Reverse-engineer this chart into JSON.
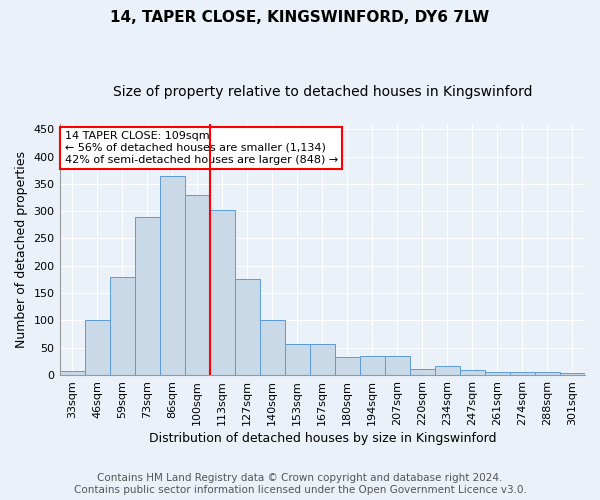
{
  "title": "14, TAPER CLOSE, KINGSWINFORD, DY6 7LW",
  "subtitle": "Size of property relative to detached houses in Kingswinford",
  "xlabel": "Distribution of detached houses by size in Kingswinford",
  "ylabel": "Number of detached properties",
  "categories": [
    "33sqm",
    "46sqm",
    "59sqm",
    "73sqm",
    "86sqm",
    "100sqm",
    "113sqm",
    "127sqm",
    "140sqm",
    "153sqm",
    "167sqm",
    "180sqm",
    "194sqm",
    "207sqm",
    "220sqm",
    "234sqm",
    "247sqm",
    "261sqm",
    "274sqm",
    "288sqm",
    "301sqm"
  ],
  "values": [
    8,
    101,
    180,
    290,
    365,
    330,
    302,
    175,
    100,
    57,
    57,
    33,
    35,
    35,
    12,
    17,
    10,
    5,
    6,
    5,
    4
  ],
  "bar_color": "#c9d9e8",
  "bar_edgecolor": "#5b9bd5",
  "vline_x": 5.5,
  "vline_color": "red",
  "annotation_text": "14 TAPER CLOSE: 109sqm\n← 56% of detached houses are smaller (1,134)\n42% of semi-detached houses are larger (848) →",
  "annotation_box_color": "white",
  "annotation_box_edgecolor": "red",
  "ylim": [
    0,
    460
  ],
  "yticks": [
    0,
    50,
    100,
    150,
    200,
    250,
    300,
    350,
    400,
    450
  ],
  "footer": "Contains HM Land Registry data © Crown copyright and database right 2024.\nContains public sector information licensed under the Open Government Licence v3.0.",
  "background_color": "#eaf1f9",
  "plot_background": "#eaf1f9",
  "grid_color": "white",
  "title_fontsize": 11,
  "subtitle_fontsize": 10,
  "axis_label_fontsize": 9,
  "tick_fontsize": 8,
  "annotation_fontsize": 8,
  "footer_fontsize": 7.5
}
